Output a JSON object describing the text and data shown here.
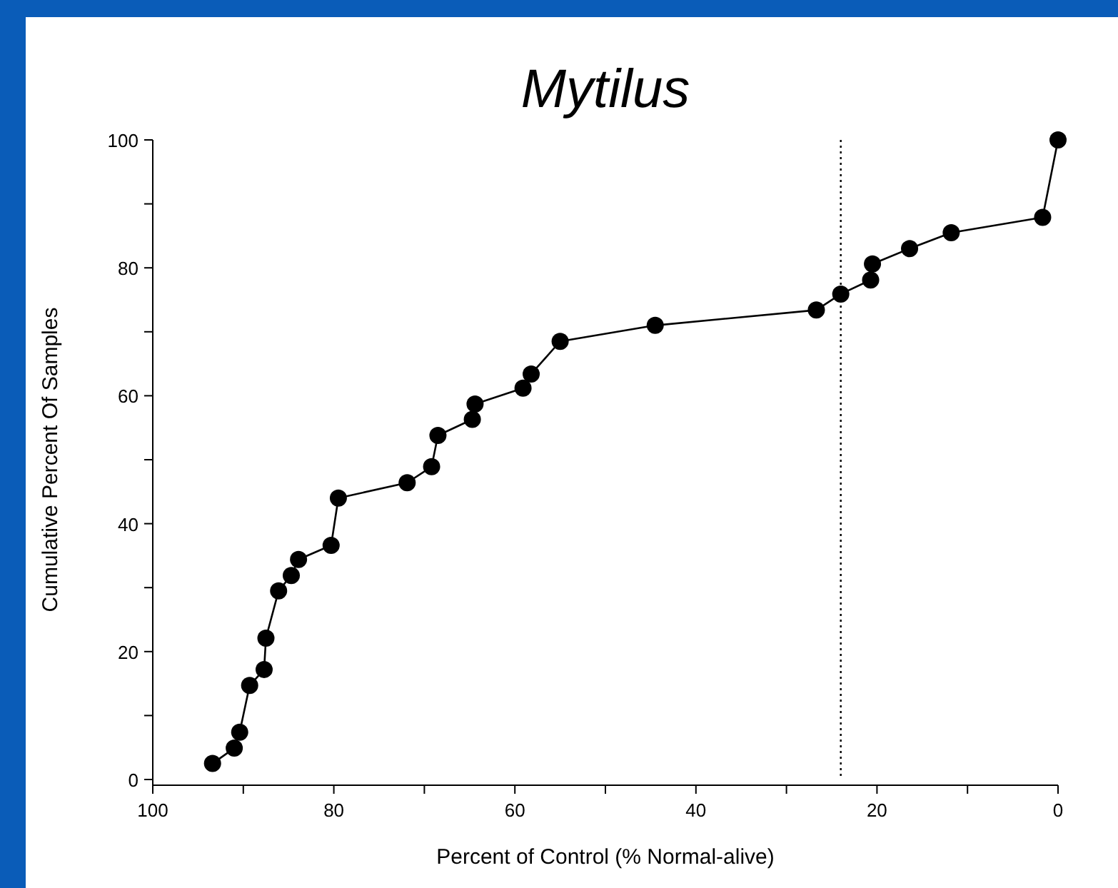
{
  "chart_data": {
    "type": "line",
    "title": "Mytilus",
    "xlabel": "Percent of Control (% Normal-alive)",
    "ylabel": "Cumulative Percent Of Samples",
    "x": [
      93.4,
      91.0,
      90.4,
      89.3,
      87.7,
      87.5,
      86.1,
      84.7,
      83.9,
      80.3,
      79.5,
      71.9,
      69.2,
      68.5,
      64.7,
      64.4,
      59.1,
      58.2,
      55.0,
      44.5,
      26.7,
      24.0,
      20.7,
      20.5,
      16.4,
      11.8,
      1.7,
      0
    ],
    "series": [
      {
        "color": "#000000",
        "values": [
          2.5,
          4.9,
          7.4,
          14.7,
          17.2,
          22.1,
          29.5,
          31.9,
          34.4,
          36.6,
          44.0,
          46.4,
          48.9,
          53.8,
          56.3,
          58.7,
          61.2,
          63.4,
          68.5,
          71.0,
          73.4,
          75.9,
          78.1,
          80.6,
          83.0,
          85.5,
          87.9,
          100
        ]
      }
    ],
    "xlim": [
      100,
      0
    ],
    "xticks": [
      100,
      {
        "value": 90,
        "label": null
      },
      80,
      {
        "value": 70,
        "label": null
      },
      60,
      {
        "value": 50,
        "label": null
      },
      40,
      {
        "value": 30,
        "label": null
      },
      20,
      {
        "value": 10,
        "label": null
      },
      0
    ],
    "ylim": [
      0,
      100
    ],
    "yticks": [
      0,
      {
        "value": 10,
        "label": null
      },
      20,
      {
        "value": 30,
        "label": null
      },
      40,
      {
        "value": 50,
        "label": null
      },
      60,
      {
        "value": 70,
        "label": null
      },
      80,
      {
        "value": 90,
        "label": null
      },
      100
    ],
    "ref_lines": [
      {
        "axis": "x",
        "value": 24,
        "color": "#000000",
        "line_style": "dotted"
      }
    ],
    "marker": "circle",
    "line_style": "solid",
    "grid": false
  }
}
